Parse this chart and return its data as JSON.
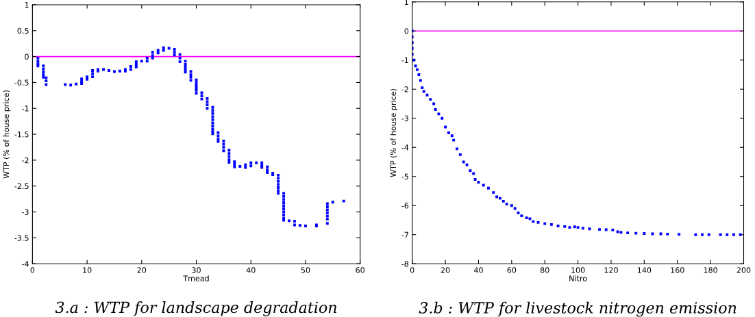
{
  "chart_data": [
    {
      "type": "scatter",
      "title": "3.a : WTP for landscape degradation",
      "xlabel": "Tmead",
      "ylabel": "WTP (% of house price)",
      "xlim": [
        0,
        60
      ],
      "xticks": [
        0,
        10,
        20,
        30,
        40,
        50,
        60
      ],
      "ylim": [
        -4,
        1
      ],
      "yticks": [
        1,
        0.5,
        0,
        -0.5,
        -1,
        -1.5,
        -2,
        -2.5,
        -3,
        -3.5,
        -4
      ],
      "grid": false,
      "marker": "square",
      "ref_lines": [
        {
          "axis": "y",
          "value": 0,
          "color": "#ff00ff"
        }
      ],
      "series": [
        {
          "color": "#0000ff",
          "x": [
            1,
            1,
            1,
            1,
            2,
            2,
            2,
            2,
            2,
            2.5,
            2.5,
            2.5,
            6,
            7,
            8,
            9,
            9,
            9,
            10,
            10,
            11,
            11,
            11,
            12,
            12,
            13,
            14,
            15,
            16,
            17,
            17,
            18,
            18,
            19,
            19,
            19,
            20,
            21,
            21,
            22,
            22,
            22,
            23,
            23,
            24,
            24,
            25,
            26,
            26,
            26,
            27,
            27,
            27,
            28,
            28,
            28,
            28,
            28,
            29,
            29,
            29,
            29,
            30,
            30,
            30,
            30,
            30,
            30,
            31,
            31,
            31,
            32,
            32,
            32,
            32,
            33,
            33,
            33,
            33,
            33,
            33,
            33,
            33,
            33,
            33,
            34,
            34,
            34,
            34,
            35,
            35,
            35,
            35,
            36,
            36,
            36,
            36,
            36,
            37,
            37,
            37,
            38,
            39,
            39,
            40,
            40,
            41,
            42,
            42,
            42,
            43,
            43,
            43,
            44,
            44,
            45,
            45,
            45,
            45,
            45,
            45,
            45,
            46,
            46,
            46,
            46,
            46,
            46,
            46,
            46,
            46,
            46,
            47,
            48,
            48,
            49,
            50,
            52,
            52,
            54,
            54,
            54,
            54,
            54,
            54,
            54,
            55,
            57
          ],
          "values": [
            -0.03,
            -0.09,
            -0.14,
            -0.18,
            -0.18,
            -0.24,
            -0.3,
            -0.35,
            -0.4,
            -0.41,
            -0.47,
            -0.54,
            -0.54,
            -0.55,
            -0.53,
            -0.43,
            -0.48,
            -0.52,
            -0.39,
            -0.44,
            -0.27,
            -0.33,
            -0.39,
            -0.25,
            -0.28,
            -0.25,
            -0.27,
            -0.29,
            -0.28,
            -0.25,
            -0.28,
            -0.19,
            -0.25,
            -0.1,
            -0.15,
            -0.2,
            -0.09,
            -0.03,
            -0.09,
            0.08,
            0.02,
            -0.03,
            0.12,
            0.07,
            0.17,
            0.12,
            0.16,
            0.14,
            0.08,
            0.03,
            0.04,
            -0.03,
            -0.1,
            -0.09,
            -0.15,
            -0.2,
            -0.25,
            -0.3,
            -0.29,
            -0.35,
            -0.4,
            -0.46,
            -0.45,
            -0.5,
            -0.55,
            -0.6,
            -0.65,
            -0.71,
            -0.7,
            -0.76,
            -0.82,
            -0.81,
            -0.87,
            -0.93,
            -1.0,
            -0.98,
            -1.04,
            -1.1,
            -1.16,
            -1.22,
            -1.28,
            -1.34,
            -1.4,
            -1.45,
            -1.49,
            -1.47,
            -1.53,
            -1.59,
            -1.64,
            -1.63,
            -1.69,
            -1.75,
            -1.82,
            -1.81,
            -1.87,
            -1.93,
            -1.99,
            -2.04,
            -2.03,
            -2.08,
            -2.13,
            -2.12,
            -2.09,
            -2.14,
            -2.05,
            -2.11,
            -2.05,
            -2.05,
            -2.1,
            -2.14,
            -2.13,
            -2.19,
            -2.24,
            -2.25,
            -2.28,
            -2.29,
            -2.35,
            -2.41,
            -2.47,
            -2.53,
            -2.59,
            -2.64,
            -2.64,
            -2.7,
            -2.76,
            -2.82,
            -2.88,
            -2.94,
            -3.0,
            -3.06,
            -3.12,
            -3.16,
            -3.17,
            -3.18,
            -3.25,
            -3.26,
            -3.27,
            -3.25,
            -3.27,
            -2.84,
            -2.9,
            -2.96,
            -3.02,
            -3.08,
            -3.14,
            -3.22,
            -2.81,
            -2.79
          ]
        }
      ]
    },
    {
      "type": "scatter",
      "title": "3.b : WTP for livestock nitrogen emission",
      "xlabel": "Nitro",
      "ylabel": "WTP (% of house price)",
      "xlim": [
        0,
        200
      ],
      "xticks": [
        0,
        20,
        40,
        60,
        80,
        100,
        120,
        140,
        160,
        180,
        200
      ],
      "ylim": [
        -8,
        1
      ],
      "yticks": [
        1,
        0,
        -1,
        -2,
        -3,
        -4,
        -5,
        -6,
        -7,
        -8
      ],
      "grid": false,
      "marker": "square",
      "ref_lines": [
        {
          "axis": "y",
          "value": 0,
          "color": "#ff00ff"
        }
      ],
      "series": [
        {
          "color": "#0000ff",
          "x": [
            0,
            0,
            0,
            0,
            0,
            1,
            2,
            3,
            4,
            5,
            6,
            7,
            9,
            11,
            13,
            14,
            16,
            18,
            20,
            22,
            24,
            25,
            27,
            29,
            31,
            33,
            35,
            37,
            38,
            40,
            43,
            46,
            49,
            51,
            53,
            55,
            57,
            60,
            62,
            64,
            66,
            69,
            71,
            73,
            76,
            80,
            84,
            88,
            92,
            95,
            98,
            100,
            103,
            107,
            113,
            117,
            121,
            124,
            126,
            130,
            135,
            140,
            145,
            150,
            154,
            161,
            171,
            175,
            179,
            186,
            190,
            194,
            198
          ],
          "values": [
            0,
            -0.2,
            -0.4,
            -0.6,
            -0.8,
            -1.0,
            -1.2,
            -1.33,
            -1.5,
            -1.7,
            -1.95,
            -2.08,
            -2.2,
            -2.35,
            -2.5,
            -2.7,
            -2.85,
            -3.0,
            -3.3,
            -3.5,
            -3.6,
            -3.75,
            -4.05,
            -4.25,
            -4.5,
            -4.6,
            -4.8,
            -4.9,
            -5.1,
            -5.2,
            -5.3,
            -5.4,
            -5.55,
            -5.7,
            -5.75,
            -5.85,
            -5.95,
            -6.0,
            -6.1,
            -6.25,
            -6.35,
            -6.42,
            -6.45,
            -6.55,
            -6.58,
            -6.62,
            -6.65,
            -6.7,
            -6.72,
            -6.75,
            -6.73,
            -6.75,
            -6.78,
            -6.8,
            -6.82,
            -6.83,
            -6.84,
            -6.9,
            -6.92,
            -6.94,
            -6.95,
            -6.96,
            -6.97,
            -6.97,
            -6.98,
            -6.99,
            -7.0,
            -7.0,
            -7.0,
            -7.0,
            -7.0,
            -7.0,
            -7.0
          ]
        }
      ]
    }
  ]
}
